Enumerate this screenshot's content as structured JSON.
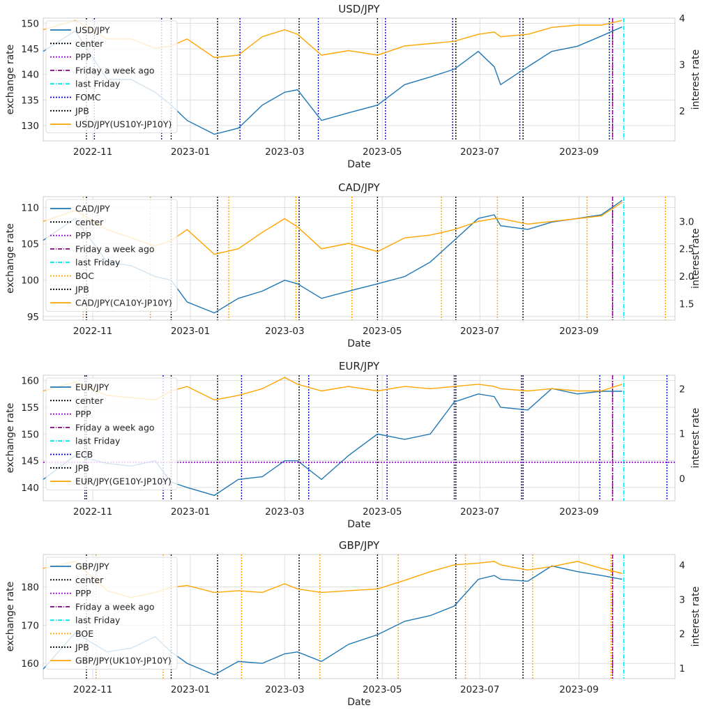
{
  "chart_data": [
    {
      "type": "line",
      "title": "USD/JPY",
      "xlabel": "Date",
      "ylabel_left": "exchange rate",
      "ylabel_right": "interest rate",
      "x_range": [
        "2022-10-01",
        "2023-10-31"
      ],
      "x_ticks": [
        "2022-11",
        "2023-01",
        "2023-03",
        "2023-05",
        "2023-07",
        "2023-09"
      ],
      "ylim_left": [
        127,
        151
      ],
      "ylim_right": [
        1.35,
        4.0
      ],
      "yticks_left": [
        130,
        135,
        140,
        145,
        150
      ],
      "yticks_right": [
        2,
        3,
        4
      ],
      "grid": true,
      "legend_position": "upper-left",
      "legend": [
        "USD/JPY",
        "center",
        "PPP",
        "Friday a week ago",
        "last Friday",
        "FOMC",
        "JPB",
        "USD/JPY(US10Y-JP10Y)"
      ],
      "series": [
        {
          "name": "USD/JPY",
          "axis": "left",
          "color": "#1f77b4",
          "x": [
            "2022-10-01",
            "2022-10-21",
            "2022-11-10",
            "2022-11-25",
            "2022-12-10",
            "2022-12-20",
            "2022-12-30",
            "2023-01-16",
            "2023-01-31",
            "2023-02-15",
            "2023-03-01",
            "2023-03-09",
            "2023-03-24",
            "2023-04-10",
            "2023-04-28",
            "2023-05-15",
            "2023-05-31",
            "2023-06-15",
            "2023-06-30",
            "2023-07-10",
            "2023-07-14",
            "2023-07-31",
            "2023-08-15",
            "2023-08-31",
            "2023-09-15",
            "2023-09-28"
          ],
          "y": [
            144.5,
            148.5,
            139,
            139,
            136.5,
            134,
            131,
            128.3,
            129.5,
            134,
            136.5,
            137,
            131,
            132.5,
            134,
            138,
            139.5,
            141,
            144.5,
            141.5,
            138,
            141.5,
            144.5,
            145.5,
            147.5,
            149.3
          ]
        },
        {
          "name": "USD/JPY(US10Y-JP10Y)",
          "axis": "right",
          "color": "#ffa500",
          "x": [
            "2022-10-01",
            "2022-10-21",
            "2022-11-10",
            "2022-11-25",
            "2022-12-10",
            "2022-12-20",
            "2022-12-30",
            "2023-01-16",
            "2023-01-31",
            "2023-02-15",
            "2023-03-01",
            "2023-03-09",
            "2023-03-24",
            "2023-04-10",
            "2023-04-28",
            "2023-05-15",
            "2023-05-31",
            "2023-06-15",
            "2023-06-30",
            "2023-07-10",
            "2023-07-14",
            "2023-07-31",
            "2023-08-15",
            "2023-08-31",
            "2023-09-15",
            "2023-09-28"
          ],
          "y": [
            3.75,
            3.95,
            3.55,
            3.55,
            3.35,
            3.4,
            3.55,
            3.15,
            3.2,
            3.6,
            3.75,
            3.65,
            3.2,
            3.3,
            3.2,
            3.4,
            3.45,
            3.5,
            3.65,
            3.7,
            3.6,
            3.65,
            3.8,
            3.85,
            3.85,
            3.95
          ]
        },
        {
          "name": "PPP",
          "axis": "left",
          "color": "#9400d3",
          "style": "dotted",
          "y": null
        }
      ],
      "vlines": [
        {
          "name": "center",
          "color": "#000000",
          "style": "dotted",
          "dates": [
            "2022-10-28",
            "2022-12-20",
            "2023-01-18",
            "2023-03-10",
            "2023-04-28",
            "2023-06-16",
            "2023-07-28",
            "2023-09-22"
          ]
        },
        {
          "name": "FOMC",
          "color": "#0000cc",
          "style": "dotted",
          "dates": [
            "2022-11-02",
            "2022-12-14",
            "2023-02-01",
            "2023-03-22",
            "2023-05-03",
            "2023-06-14",
            "2023-07-26",
            "2023-09-20"
          ]
        },
        {
          "name": "Friday a week ago",
          "color": "#800080",
          "style": "dashdot",
          "dates": [
            "2023-09-22"
          ]
        },
        {
          "name": "last Friday",
          "color": "#00e5e5",
          "style": "dashdot",
          "dates": [
            "2023-09-29"
          ]
        }
      ]
    },
    {
      "type": "line",
      "title": "CAD/JPY",
      "xlabel": "Date",
      "ylabel_left": "exchange rate",
      "ylabel_right": "interest rate",
      "x_range": [
        "2022-10-01",
        "2023-10-31"
      ],
      "x_ticks": [
        "2022-11",
        "2023-01",
        "2023-03",
        "2023-05",
        "2023-07",
        "2023-09"
      ],
      "ylim_left": [
        94.5,
        111.5
      ],
      "ylim_right": [
        1.2,
        3.45
      ],
      "yticks_left": [
        95,
        100,
        105,
        110
      ],
      "yticks_right": [
        1.5,
        2.0,
        2.5,
        3.0
      ],
      "yticks_right_labels": [
        "1.5",
        "2.0",
        "2.5",
        "3.0"
      ],
      "grid": true,
      "legend_position": "upper-left",
      "legend": [
        "CAD/JPY",
        "center",
        "PPP",
        "Friday a week ago",
        "last Friday",
        "BOC",
        "JPB",
        "CAD/JPY(CA10Y-JP10Y)"
      ],
      "series": [
        {
          "name": "CAD/JPY",
          "axis": "left",
          "color": "#1f77b4",
          "x": [
            "2022-10-01",
            "2022-10-21",
            "2022-11-10",
            "2022-11-25",
            "2022-12-10",
            "2022-12-20",
            "2022-12-30",
            "2023-01-16",
            "2023-01-31",
            "2023-02-15",
            "2023-03-01",
            "2023-03-09",
            "2023-03-24",
            "2023-04-10",
            "2023-04-28",
            "2023-05-15",
            "2023-05-31",
            "2023-06-15",
            "2023-06-30",
            "2023-07-10",
            "2023-07-14",
            "2023-07-31",
            "2023-08-15",
            "2023-08-31",
            "2023-09-15",
            "2023-09-28"
          ],
          "y": [
            105.5,
            108.5,
            102.5,
            102,
            100.5,
            100,
            97,
            95.5,
            97.5,
            98.5,
            100,
            99.5,
            97.5,
            98.5,
            99.5,
            100.5,
            102.5,
            105.5,
            108.5,
            109,
            107.5,
            107,
            108,
            108.5,
            109,
            111
          ]
        },
        {
          "name": "CAD/JPY(CA10Y-JP10Y)",
          "axis": "right",
          "color": "#ffa500",
          "x": [
            "2022-10-01",
            "2022-10-21",
            "2022-11-10",
            "2022-11-25",
            "2022-12-10",
            "2022-12-20",
            "2022-12-30",
            "2023-01-16",
            "2023-01-31",
            "2023-02-15",
            "2023-03-01",
            "2023-03-09",
            "2023-03-24",
            "2023-04-10",
            "2023-04-28",
            "2023-05-15",
            "2023-05-31",
            "2023-06-15",
            "2023-06-30",
            "2023-07-10",
            "2023-07-14",
            "2023-07-31",
            "2023-08-15",
            "2023-08-31",
            "2023-09-15",
            "2023-09-28"
          ],
          "y": [
            3.0,
            3.2,
            2.85,
            2.7,
            2.55,
            2.65,
            2.85,
            2.4,
            2.5,
            2.8,
            3.05,
            2.9,
            2.5,
            2.6,
            2.45,
            2.7,
            2.75,
            2.85,
            3.0,
            3.05,
            3.05,
            2.95,
            3.0,
            3.05,
            3.1,
            3.35
          ]
        },
        {
          "name": "PPP",
          "axis": "left",
          "color": "#9400d3",
          "style": "dotted",
          "y": null
        }
      ],
      "vlines": [
        {
          "name": "center",
          "color": "#000000",
          "style": "dotted",
          "dates": [
            "2022-10-28",
            "2022-12-20",
            "2023-01-18",
            "2023-03-10",
            "2023-04-28",
            "2023-06-16",
            "2023-07-28",
            "2023-09-22"
          ]
        },
        {
          "name": "BOC",
          "color": "#ffa500",
          "style": "dotted",
          "dates": [
            "2022-10-26",
            "2022-12-07",
            "2023-01-25",
            "2023-03-08",
            "2023-04-12",
            "2023-06-07",
            "2023-07-12",
            "2023-09-06",
            "2023-10-25"
          ]
        },
        {
          "name": "Friday a week ago",
          "color": "#800080",
          "style": "dashdot",
          "dates": [
            "2023-09-22"
          ]
        },
        {
          "name": "last Friday",
          "color": "#00e5e5",
          "style": "dashdot",
          "dates": [
            "2023-09-29"
          ]
        }
      ]
    },
    {
      "type": "line",
      "title": "EUR/JPY",
      "xlabel": "Date",
      "ylabel_left": "exchange rate",
      "ylabel_right": "interest rate",
      "x_range": [
        "2022-10-01",
        "2023-10-31"
      ],
      "x_ticks": [
        "2022-11",
        "2023-01",
        "2023-03",
        "2023-05",
        "2023-07",
        "2023-09"
      ],
      "ylim_left": [
        137.5,
        161
      ],
      "ylim_right": [
        -0.5,
        2.3
      ],
      "yticks_left": [
        140,
        145,
        150,
        155,
        160
      ],
      "yticks_right": [
        0,
        1,
        2
      ],
      "grid": true,
      "legend_position": "upper-left",
      "legend": [
        "EUR/JPY",
        "center",
        "PPP",
        "Friday a week ago",
        "last Friday",
        "ECB",
        "JPB",
        "EUR/JPY(GE10Y-JP10Y)"
      ],
      "series": [
        {
          "name": "EUR/JPY",
          "axis": "left",
          "color": "#1f77b4",
          "x": [
            "2022-10-01",
            "2022-10-21",
            "2022-11-10",
            "2022-11-25",
            "2022-12-10",
            "2022-12-20",
            "2022-12-30",
            "2023-01-16",
            "2023-01-31",
            "2023-02-15",
            "2023-03-01",
            "2023-03-09",
            "2023-03-24",
            "2023-04-10",
            "2023-04-28",
            "2023-05-15",
            "2023-05-31",
            "2023-06-15",
            "2023-06-30",
            "2023-07-10",
            "2023-07-14",
            "2023-07-31",
            "2023-08-15",
            "2023-08-31",
            "2023-09-15",
            "2023-09-28"
          ],
          "y": [
            141.5,
            146,
            144.5,
            144,
            145,
            141,
            140,
            138.5,
            141.5,
            142,
            145,
            145,
            141.5,
            146,
            150,
            149,
            150,
            156,
            157.5,
            157,
            155,
            154.5,
            158.5,
            157.5,
            158,
            158
          ]
        },
        {
          "name": "EUR/JPY(GE10Y-JP10Y)",
          "axis": "right",
          "color": "#ffa500",
          "x": [
            "2022-10-01",
            "2022-10-21",
            "2022-11-10",
            "2022-11-25",
            "2022-12-10",
            "2022-12-20",
            "2022-12-30",
            "2023-01-16",
            "2023-01-31",
            "2023-02-15",
            "2023-03-01",
            "2023-03-09",
            "2023-03-24",
            "2023-04-10",
            "2023-04-28",
            "2023-05-15",
            "2023-05-31",
            "2023-06-15",
            "2023-06-30",
            "2023-07-10",
            "2023-07-14",
            "2023-07-31",
            "2023-08-15",
            "2023-08-31",
            "2023-09-15",
            "2023-09-28"
          ],
          "y": [
            1.95,
            2.15,
            1.85,
            1.8,
            1.75,
            1.95,
            2.05,
            1.75,
            1.85,
            2.0,
            2.25,
            2.1,
            1.95,
            2.05,
            1.95,
            2.05,
            2.0,
            2.05,
            2.1,
            2.05,
            2.0,
            1.95,
            2.0,
            1.95,
            1.95,
            2.1
          ]
        },
        {
          "name": "PPP",
          "axis": "left",
          "color": "#9400d3",
          "style": "dotted",
          "y": 144.7
        }
      ],
      "vlines": [
        {
          "name": "center",
          "color": "#000000",
          "style": "dotted",
          "dates": [
            "2022-10-28",
            "2022-12-20",
            "2023-01-18",
            "2023-03-10",
            "2023-04-28",
            "2023-06-16",
            "2023-07-28",
            "2023-09-22"
          ]
        },
        {
          "name": "ECB",
          "color": "#0000cc",
          "style": "dotted",
          "dates": [
            "2022-10-27",
            "2022-12-15",
            "2023-02-02",
            "2023-03-16",
            "2023-05-04",
            "2023-06-15",
            "2023-07-27",
            "2023-09-14",
            "2023-10-26"
          ]
        },
        {
          "name": "Friday a week ago",
          "color": "#800080",
          "style": "dashdot",
          "dates": [
            "2023-09-22"
          ]
        },
        {
          "name": "last Friday",
          "color": "#00e5e5",
          "style": "dashdot",
          "dates": [
            "2023-09-29"
          ]
        }
      ]
    },
    {
      "type": "line",
      "title": "GBP/JPY",
      "xlabel": "Date",
      "ylabel_left": "exchange rate",
      "ylabel_right": "interest rate",
      "x_range": [
        "2022-10-01",
        "2023-10-31"
      ],
      "x_ticks": [
        "2022-11",
        "2023-01",
        "2023-03",
        "2023-05",
        "2023-07",
        "2023-09"
      ],
      "ylim_left": [
        156,
        188.5
      ],
      "ylim_right": [
        0.7,
        4.3
      ],
      "yticks_left": [
        160,
        170,
        180
      ],
      "yticks_right": [
        1,
        2,
        3,
        4
      ],
      "grid": true,
      "legend_position": "upper-left",
      "legend": [
        "GBP/JPY",
        "center",
        "PPP",
        "Friday a week ago",
        "last Friday",
        "BOE",
        "JPB",
        "GBP/JPY(UK10Y-JP10Y)"
      ],
      "series": [
        {
          "name": "GBP/JPY",
          "axis": "left",
          "color": "#1f77b4",
          "x": [
            "2022-10-01",
            "2022-10-21",
            "2022-11-10",
            "2022-11-25",
            "2022-12-10",
            "2022-12-20",
            "2022-12-30",
            "2023-01-16",
            "2023-01-31",
            "2023-02-15",
            "2023-03-01",
            "2023-03-09",
            "2023-03-24",
            "2023-04-10",
            "2023-04-28",
            "2023-05-15",
            "2023-05-31",
            "2023-06-15",
            "2023-06-30",
            "2023-07-10",
            "2023-07-14",
            "2023-07-31",
            "2023-08-15",
            "2023-08-31",
            "2023-09-15",
            "2023-09-28"
          ],
          "y": [
            158.5,
            168,
            163,
            164,
            167,
            163,
            160,
            157,
            160.5,
            160,
            162.5,
            163,
            160.5,
            165,
            167.5,
            171,
            172.5,
            175,
            182,
            183,
            182,
            181.5,
            185.5,
            184,
            183,
            182
          ]
        },
        {
          "name": "GBP/JPY(UK10Y-JP10Y)",
          "axis": "right",
          "color": "#ffa500",
          "x": [
            "2022-10-01",
            "2022-10-21",
            "2022-11-10",
            "2022-11-25",
            "2022-12-10",
            "2022-12-20",
            "2022-12-30",
            "2023-01-16",
            "2023-01-31",
            "2023-02-15",
            "2023-03-01",
            "2023-03-09",
            "2023-03-24",
            "2023-04-10",
            "2023-04-28",
            "2023-05-15",
            "2023-05-31",
            "2023-06-15",
            "2023-06-30",
            "2023-07-10",
            "2023-07-14",
            "2023-07-31",
            "2023-08-15",
            "2023-08-31",
            "2023-09-15",
            "2023-09-28"
          ],
          "y": [
            3.9,
            4.1,
            3.25,
            3.05,
            3.2,
            3.35,
            3.4,
            3.2,
            3.25,
            3.2,
            3.45,
            3.3,
            3.2,
            3.25,
            3.3,
            3.55,
            3.8,
            4.0,
            4.05,
            4.1,
            4.0,
            3.85,
            3.95,
            4.1,
            3.9,
            3.75
          ]
        },
        {
          "name": "PPP",
          "axis": "left",
          "color": "#9400d3",
          "style": "dotted",
          "y": null
        }
      ],
      "vlines": [
        {
          "name": "center",
          "color": "#000000",
          "style": "dotted",
          "dates": [
            "2022-10-28",
            "2022-12-20",
            "2023-01-18",
            "2023-03-10",
            "2023-04-28",
            "2023-06-16",
            "2023-07-28",
            "2023-09-22"
          ]
        },
        {
          "name": "BOE",
          "color": "#ffa500",
          "style": "dotted",
          "dates": [
            "2022-11-03",
            "2022-12-15",
            "2023-02-02",
            "2023-03-23",
            "2023-05-11",
            "2023-06-22",
            "2023-08-03",
            "2023-09-21"
          ]
        },
        {
          "name": "Friday a week ago",
          "color": "#800080",
          "style": "dashdot",
          "dates": [
            "2023-09-22"
          ]
        },
        {
          "name": "last Friday",
          "color": "#00e5e5",
          "style": "dashdot",
          "dates": [
            "2023-09-29"
          ]
        }
      ]
    }
  ]
}
